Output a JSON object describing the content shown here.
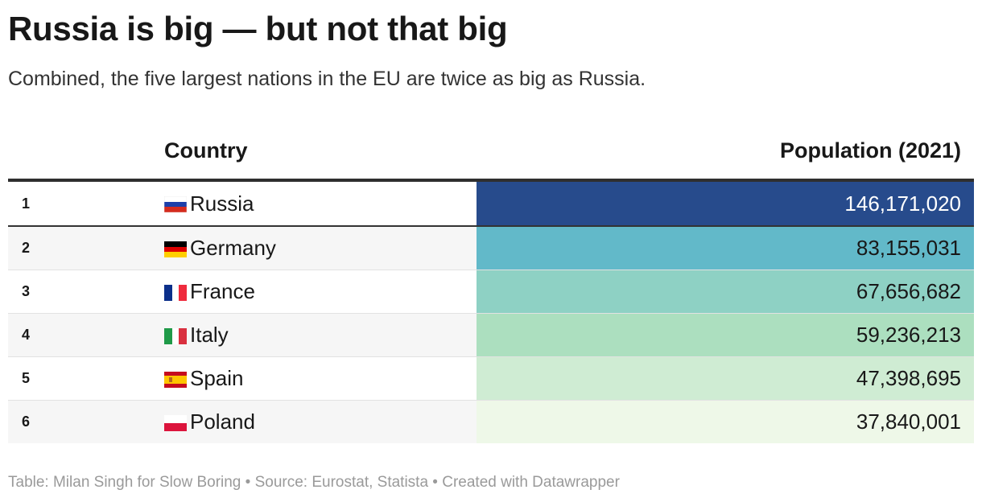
{
  "header": {
    "title": "Russia is big — but not that big",
    "subtitle": "Combined, the five largest nations in the EU are twice as big as Russia."
  },
  "table": {
    "columns": [
      "Country",
      "Population (2021)"
    ],
    "rows": [
      {
        "rank": "1",
        "country": "Russia",
        "flag": "russia-flag-icon",
        "population": "146,171,020",
        "bg": "#274b8c",
        "text_color": "#ffffff"
      },
      {
        "rank": "2",
        "country": "Germany",
        "flag": "germany-flag-icon",
        "population": "83,155,031",
        "bg": "#62b9c9",
        "text_color": "#181818"
      },
      {
        "rank": "3",
        "country": "France",
        "flag": "france-flag-icon",
        "population": "67,656,682",
        "bg": "#8ed1c4",
        "text_color": "#181818"
      },
      {
        "rank": "4",
        "country": "Italy",
        "flag": "italy-flag-icon",
        "population": "59,236,213",
        "bg": "#acdfbf",
        "text_color": "#181818"
      },
      {
        "rank": "5",
        "country": "Spain",
        "flag": "spain-flag-icon",
        "population": "47,398,695",
        "bg": "#cfecd3",
        "text_color": "#181818"
      },
      {
        "rank": "6",
        "country": "Poland",
        "flag": "poland-flag-icon",
        "population": "37,840,001",
        "bg": "#eef8e8",
        "text_color": "#181818"
      }
    ]
  },
  "footer": {
    "text": "Table: Milan Singh for Slow Boring • Source: Eurostat, Statista • Created with Datawrapper"
  }
}
